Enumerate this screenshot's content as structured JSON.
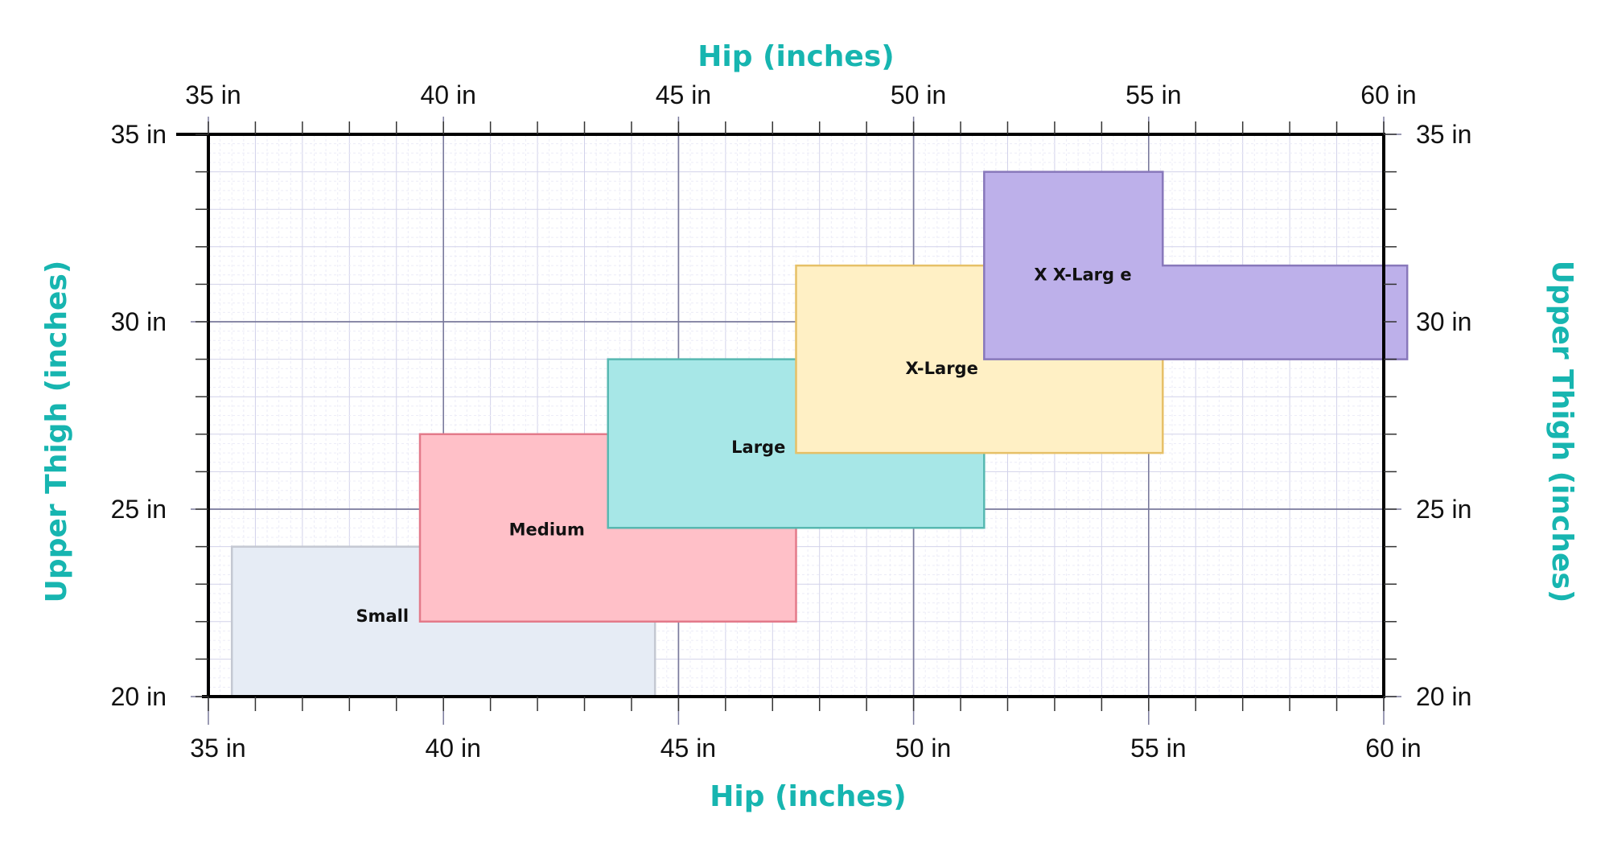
{
  "chart_data": {
    "type": "area",
    "x_axis": {
      "title": "Hip (inches)",
      "range": [
        35,
        60
      ],
      "ticks": [
        35,
        40,
        45,
        50,
        55,
        60
      ],
      "tick_labels": [
        "35 in",
        "40 in",
        "45 in",
        "50 in",
        "55 in",
        "60 in"
      ],
      "position": "top and bottom"
    },
    "y_axis": {
      "title": "Upper Thigh (inches)",
      "range": [
        20,
        35
      ],
      "ticks": [
        20,
        25,
        30,
        35
      ],
      "tick_labels": [
        "20 in",
        "25 in",
        "30 in",
        "35 in"
      ],
      "position": "left and right"
    },
    "grid": true,
    "regions": [
      {
        "name": "Small",
        "color": "#e6ecf5",
        "stroke": "#c4c8d2",
        "polygon": [
          [
            35.5,
            20
          ],
          [
            44.5,
            20
          ],
          [
            44.5,
            24
          ],
          [
            35.5,
            24
          ]
        ],
        "label_at": [
          38.7,
          22.0
        ]
      },
      {
        "name": "Medium",
        "color": "#ffc0c8",
        "stroke": "#e37a8a",
        "polygon": [
          [
            39.5,
            22
          ],
          [
            47.5,
            22
          ],
          [
            47.5,
            27
          ],
          [
            39.5,
            27
          ]
        ],
        "label_at": [
          42.2,
          24.3
        ]
      },
      {
        "name": "Large",
        "color": "#a7e7e7",
        "stroke": "#57b8b1",
        "polygon": [
          [
            43.5,
            24.5
          ],
          [
            51.5,
            24.5
          ],
          [
            51.5,
            29
          ],
          [
            43.5,
            29
          ]
        ],
        "label_at": [
          46.7,
          26.5
        ]
      },
      {
        "name": "X-Large",
        "color": "#fff0c5",
        "stroke": "#e6c067",
        "polygon": [
          [
            47.5,
            26.5
          ],
          [
            55.3,
            26.5
          ],
          [
            55.3,
            31.5
          ],
          [
            47.5,
            31.5
          ]
        ],
        "label_at": [
          50.6,
          28.6
        ]
      },
      {
        "name": "X X-Larg e",
        "color": "#bdb0ea",
        "stroke": "#8878bb",
        "polygon": [
          [
            51.5,
            29
          ],
          [
            60.5,
            29
          ],
          [
            60.5,
            31.5
          ],
          [
            55.3,
            31.5
          ],
          [
            55.3,
            34
          ],
          [
            51.5,
            34
          ]
        ],
        "label_at": [
          53.6,
          31.1
        ]
      }
    ]
  }
}
